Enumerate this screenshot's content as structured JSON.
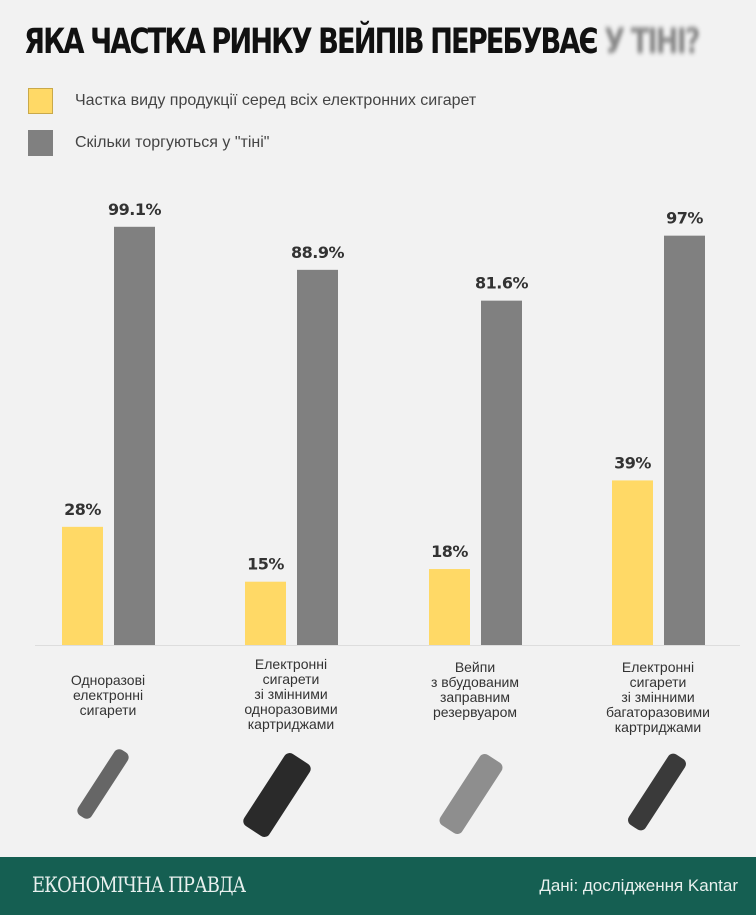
{
  "chart_data": {
    "type": "bar",
    "title": "ЯКА ЧАСТКА РИНКУ ВЕЙПІВ ПЕРЕБУВАЄ",
    "title_highlight": "У ТІНІ?",
    "categories": [
      "Одноразові електронні сигарети",
      "Електронні сигарети зі змінними одноразовими картриджами",
      "Вейпи з вбудованим заправним резервуаром",
      "Електронні сигарети зі змінними багаторазовими картриджами"
    ],
    "category_lines": [
      [
        "Одноразові",
        "електронні",
        "сигарети"
      ],
      [
        "Електронні",
        "сигарети",
        "зі змінними",
        "одноразовими",
        "картриджами"
      ],
      [
        "Вейпи",
        "з вбудованим",
        "заправним",
        "резервуаром"
      ],
      [
        "Електронні",
        "сигарети",
        "зі змінними",
        "багаторазовими",
        "картриджами"
      ]
    ],
    "series": [
      {
        "name": "Частка виду продукції серед всіх електронних сигарет",
        "color": "#ffd966",
        "values": [
          28,
          15,
          18,
          39
        ],
        "labels": [
          "28%",
          "15%",
          "18%",
          "39%"
        ]
      },
      {
        "name": "Скільки торгуються у \"тіні\"",
        "color": "#808080",
        "values": [
          99.1,
          88.9,
          81.6,
          97
        ],
        "labels": [
          "99.1%",
          "88.9%",
          "81.6%",
          "97%"
        ]
      }
    ],
    "ylim": [
      0,
      100
    ],
    "grid": false,
    "legend": "top-left"
  },
  "footer": {
    "logo": "ЕКОНОМІЧНА ПРАВДА",
    "source": "Дані: дослідження Kantar"
  }
}
